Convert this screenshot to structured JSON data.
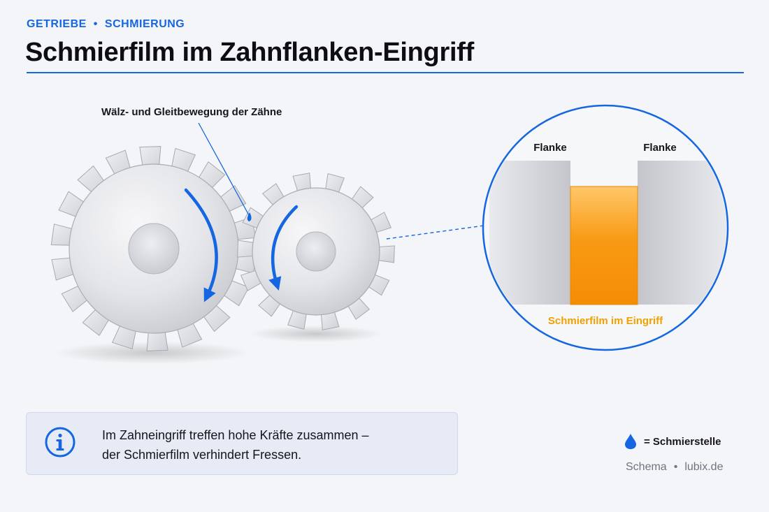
{
  "header": {
    "category_1": "GETRIEBE",
    "category_sep": "•",
    "category_2": "SCHMIERUNG",
    "title": "Schmierfilm im Zahnflanken-Eingriff"
  },
  "diagram": {
    "motion_label": "Wälz- und Gleitbewegung der Zähne",
    "flank_left": "Flanke",
    "flank_right": "Flanke",
    "film_label": "Schmierfilm im Eingriff"
  },
  "info": {
    "line1": "Im Zahneingriff treffen hohe Kräfte zusammen –",
    "line2": "der Schmierfilm verhindert Fressen."
  },
  "legend": {
    "symbol": "drop-icon",
    "label": "= Schmierstelle"
  },
  "credit": {
    "left": "Schema",
    "sep": "•",
    "right": "lubix.de"
  },
  "colors": {
    "accent": "#1566e0",
    "lubricant": "#f7950f",
    "film_label": "#f0a000"
  }
}
